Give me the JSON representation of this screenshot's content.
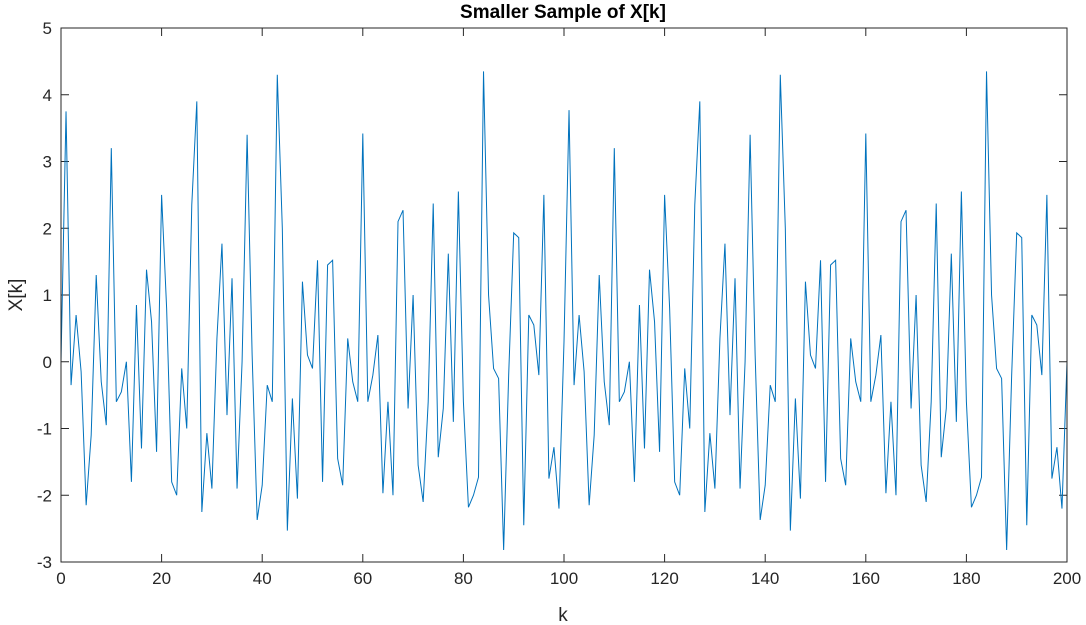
{
  "chart_data": {
    "type": "line",
    "title": "Smaller Sample of X[k]",
    "xlabel": "k",
    "ylabel": "X[k]",
    "xlim": [
      0,
      200
    ],
    "ylim": [
      -3,
      5
    ],
    "xticks": [
      0,
      20,
      40,
      60,
      80,
      100,
      120,
      140,
      160,
      180,
      200
    ],
    "yticks": [
      -3,
      -2,
      -1,
      0,
      1,
      2,
      3,
      4,
      5
    ],
    "grid": false,
    "line_color": "#0072BD",
    "series": [
      {
        "x": [
          0,
          1,
          2,
          3,
          4,
          5,
          6,
          7,
          8,
          9,
          10,
          11,
          12,
          13,
          14,
          15,
          16,
          17,
          18,
          19,
          20,
          21,
          22,
          23,
          24,
          25,
          26,
          27,
          28,
          29,
          30,
          31,
          32,
          33,
          34,
          35,
          36,
          37,
          38,
          39,
          40,
          41,
          42,
          43,
          44,
          45,
          46,
          47,
          48,
          49,
          50,
          51,
          52,
          53,
          54,
          55,
          56,
          57,
          58,
          59,
          60,
          61,
          62,
          63,
          64,
          65,
          66,
          67,
          68,
          69,
          70,
          71,
          72,
          73,
          74,
          75,
          76,
          77,
          78,
          79,
          80,
          81,
          82,
          83,
          84,
          85,
          86,
          87,
          88,
          89,
          90,
          91,
          92,
          93,
          94,
          95,
          96,
          97,
          98,
          99,
          100,
          101,
          102,
          103,
          104,
          105,
          106,
          107,
          108,
          109,
          110,
          111,
          112,
          113,
          114,
          115,
          116,
          117,
          118,
          119,
          120,
          121,
          122,
          123,
          124,
          125,
          126,
          127,
          128,
          129,
          130,
          131,
          132,
          133,
          134,
          135,
          136,
          137,
          138,
          139,
          140,
          141,
          142,
          143,
          144,
          145,
          146,
          147,
          148,
          149,
          150,
          151,
          152,
          153,
          154,
          155,
          156,
          157,
          158,
          159,
          160,
          161,
          162,
          163,
          164,
          165,
          166,
          167,
          168,
          169,
          170,
          171,
          172,
          173,
          174,
          175,
          176,
          177,
          178,
          179,
          180,
          181,
          182,
          183,
          184,
          185,
          186,
          187,
          188,
          189,
          190,
          191,
          192,
          193,
          194,
          195,
          196,
          197,
          198,
          199,
          200
        ],
        "y": [
          0.0,
          3.75,
          -0.35,
          0.7,
          -0.15,
          -2.15,
          -1.1,
          1.3,
          -0.3,
          -0.95,
          3.2,
          -0.6,
          -0.45,
          0.0,
          -1.8,
          0.85,
          -1.3,
          1.38,
          0.6,
          -1.35,
          2.5,
          0.8,
          -1.8,
          -2.0,
          -0.1,
          -1.0,
          2.35,
          3.9,
          -2.25,
          -1.07,
          -1.9,
          0.35,
          1.77,
          -0.8,
          1.25,
          -1.9,
          0.0,
          3.4,
          0.1,
          -2.37,
          -1.85,
          -0.35,
          -0.6,
          4.3,
          2.0,
          -2.53,
          -0.55,
          -2.05,
          1.2,
          0.1,
          -0.1,
          1.52,
          -1.8,
          1.45,
          1.52,
          -1.45,
          -1.85,
          0.35,
          -0.3,
          -0.6,
          3.42,
          -0.6,
          -0.2,
          0.4,
          -1.97,
          -0.6,
          -2.0,
          2.1,
          2.27,
          -0.7,
          1.0,
          -1.55,
          -2.1,
          -0.6,
          2.37,
          -1.43,
          -0.7,
          1.62,
          -0.9,
          2.55,
          -0.6,
          -2.18,
          -2.0,
          -1.73,
          4.35,
          1.0,
          -0.1,
          -0.25,
          -2.82,
          -0.2,
          1.93,
          1.86,
          -2.45,
          0.7,
          0.55,
          -0.2,
          2.5,
          -1.75,
          -1.28,
          -2.2,
          0.3,
          3.77,
          -0.35,
          0.7,
          -0.15,
          -2.15,
          -1.1,
          1.3,
          -0.3,
          -0.95,
          3.2,
          -0.6,
          -0.45,
          0.0,
          -1.8,
          0.85,
          -1.3,
          1.38,
          0.6,
          -1.35,
          2.5,
          0.8,
          -1.8,
          -2.0,
          -0.1,
          -1.0,
          2.35,
          3.9,
          -2.25,
          -1.07,
          -1.9,
          0.35,
          1.77,
          -0.8,
          1.25,
          -1.9,
          0.0,
          3.4,
          0.1,
          -2.37,
          -1.85,
          -0.35,
          -0.6,
          4.3,
          2.0,
          -2.53,
          -0.55,
          -2.05,
          1.2,
          0.1,
          -0.1,
          1.52,
          -1.8,
          1.45,
          1.52,
          -1.45,
          -1.85,
          0.35,
          -0.3,
          -0.6,
          3.42,
          -0.6,
          -0.2,
          0.4,
          -1.97,
          -0.6,
          -2.0,
          2.1,
          2.27,
          -0.7,
          1.0,
          -1.55,
          -2.1,
          -0.6,
          2.37,
          -1.43,
          -0.7,
          1.62,
          -0.9,
          2.55,
          -0.6,
          -2.18,
          -2.0,
          -1.73,
          4.35,
          1.0,
          -0.1,
          -0.25,
          -2.82,
          -0.2,
          1.93,
          1.86,
          -2.45,
          0.7,
          0.55,
          -0.2,
          2.5,
          -1.75,
          -1.28,
          -2.2,
          0.0
        ]
      }
    ]
  }
}
